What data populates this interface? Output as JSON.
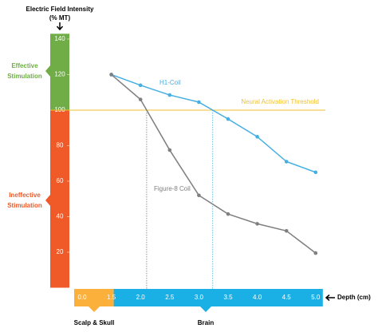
{
  "chart_data": {
    "type": "line",
    "y_title": [
      "Electric Field Intensity",
      "(% MT)"
    ],
    "x_title": "Depth (cm)",
    "categories": [
      "0.0",
      "1.5",
      "2.0",
      "2.5",
      "3.0",
      "3.5",
      "4.0",
      "4.5",
      "5.0"
    ],
    "series": [
      {
        "name": "H1-Coil",
        "color": "#45aee3",
        "values": [
          null,
          120,
          114,
          108.5,
          104.5,
          95,
          85,
          71,
          65
        ]
      },
      {
        "name": "Figure-8 Coil",
        "color": "#7f7f7f",
        "values": [
          null,
          120,
          106,
          77.5,
          52,
          41.5,
          36,
          32,
          19.5
        ]
      }
    ],
    "ylim": [
      0,
      143
    ],
    "yticks": [
      20,
      40,
      60,
      80,
      100,
      120,
      140
    ],
    "threshold": {
      "value": 100,
      "label": "Neural Activation Threshold",
      "color": "#f2c12e"
    },
    "zones": [
      {
        "label": [
          "Effective",
          "Stimulation"
        ],
        "color": "#70ad47"
      },
      {
        "label": [
          "Ineffective",
          "Stimulation"
        ],
        "color": "#f05a28"
      }
    ],
    "regions": [
      {
        "label": "Scalp & Skull",
        "color": "#fbb03b"
      },
      {
        "label": "Brain",
        "color": "#1ab0e6"
      }
    ]
  }
}
